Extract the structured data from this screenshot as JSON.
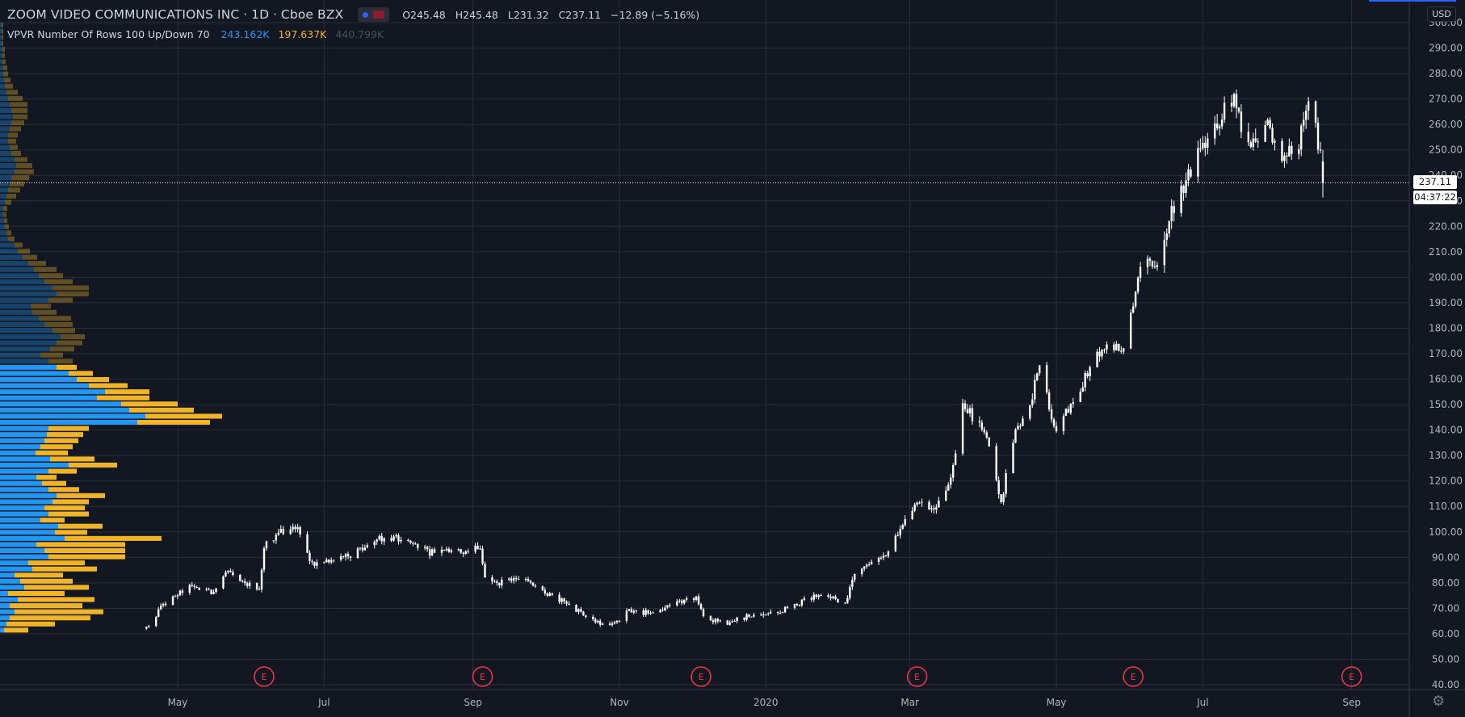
{
  "header": {
    "symbol": "ZOOM VIDEO COMMUNICATIONS INC",
    "interval": "1D",
    "exchange": "Cboe BZX",
    "open": "O245.48",
    "high": "H245.48",
    "low": "L231.32",
    "close": "C237.11",
    "change": "−12.89 (−5.16%)"
  },
  "indicator": {
    "label": "VPVR Number Of Rows 100 Up/Down 70",
    "up_volume": "243.162K",
    "down_volume": "197.637K",
    "total_volume": "440.799K"
  },
  "scale": {
    "currency": "USD",
    "last_price_tag": "237.11",
    "countdown_tag": "04:37:22"
  },
  "colors": {
    "background": "#131722",
    "grid": "#2a2e39",
    "candle": "#ffffff",
    "vp_up": "#2196f3",
    "vp_down": "#f0b429",
    "earnings": "#f23645"
  },
  "icons": {
    "earnings_marker": "E",
    "settings": "gear-icon"
  },
  "chart_data": {
    "type": "candlestick",
    "title": "ZOOM VIDEO COMMUNICATIONS INC · 1D · Cboe BZX",
    "ylim": [
      40,
      300
    ],
    "yticks": [
      "40.00",
      "50.00",
      "60.00",
      "70.00",
      "80.00",
      "90.00",
      "100.00",
      "110.00",
      "120.00",
      "130.00",
      "140.00",
      "150.00",
      "160.00",
      "170.00",
      "180.00",
      "190.00",
      "200.00",
      "210.00",
      "220.00",
      "230.00",
      "240.00",
      "250.00",
      "260.00",
      "270.00",
      "280.00",
      "290.00",
      "300.00"
    ],
    "xticks": [
      "May",
      "Jul",
      "Sep",
      "Nov",
      "2020",
      "Mar",
      "May",
      "Jul",
      "Sep"
    ],
    "xlim": [
      "2019-02-16",
      "2020-09-25"
    ],
    "xtick_dates": [
      "2019-05-01",
      "2019-07-01",
      "2019-09-01",
      "2019-11-01",
      "2020-01-01",
      "2020-03-01",
      "2020-05-01",
      "2020-07-01",
      "2020-09-01"
    ],
    "earnings_dates": [
      "2019-06-06",
      "2019-09-05",
      "2019-12-05",
      "2020-03-04",
      "2020-06-02",
      "2020-09-01"
    ],
    "price_path": [
      [
        "2019-04-18",
        62
      ],
      [
        "2019-04-24",
        70
      ],
      [
        "2019-05-01",
        76
      ],
      [
        "2019-05-08",
        79
      ],
      [
        "2019-05-15",
        76
      ],
      [
        "2019-05-22",
        86
      ],
      [
        "2019-05-29",
        80
      ],
      [
        "2019-06-04",
        78
      ],
      [
        "2019-06-06",
        94
      ],
      [
        "2019-06-12",
        100
      ],
      [
        "2019-06-20",
        103
      ],
      [
        "2019-06-25",
        88
      ],
      [
        "2019-07-03",
        88
      ],
      [
        "2019-07-10",
        90
      ],
      [
        "2019-07-17",
        94
      ],
      [
        "2019-07-24",
        97
      ],
      [
        "2019-07-31",
        98
      ],
      [
        "2019-08-07",
        95
      ],
      [
        "2019-08-14",
        92
      ],
      [
        "2019-08-21",
        93
      ],
      [
        "2019-08-28",
        92
      ],
      [
        "2019-09-04",
        94
      ],
      [
        "2019-09-06",
        82
      ],
      [
        "2019-09-12",
        80
      ],
      [
        "2019-09-20",
        82
      ],
      [
        "2019-10-01",
        76
      ],
      [
        "2019-10-10",
        72
      ],
      [
        "2019-10-20",
        66
      ],
      [
        "2019-10-28",
        63
      ],
      [
        "2019-11-05",
        69
      ],
      [
        "2019-11-15",
        68
      ],
      [
        "2019-11-25",
        72
      ],
      [
        "2019-12-03",
        74
      ],
      [
        "2019-12-06",
        66
      ],
      [
        "2019-12-15",
        64
      ],
      [
        "2019-12-25",
        67
      ],
      [
        "2020-01-05",
        68
      ],
      [
        "2020-01-15",
        72
      ],
      [
        "2020-01-25",
        76
      ],
      [
        "2020-02-03",
        72
      ],
      [
        "2020-02-08",
        86
      ],
      [
        "2020-02-20",
        90
      ],
      [
        "2020-02-28",
        105
      ],
      [
        "2020-03-04",
        112
      ],
      [
        "2020-03-10",
        108
      ],
      [
        "2020-03-18",
        120
      ],
      [
        "2020-03-23",
        150
      ],
      [
        "2020-04-01",
        140
      ],
      [
        "2020-04-08",
        112
      ],
      [
        "2020-04-14",
        140
      ],
      [
        "2020-04-20",
        150
      ],
      [
        "2020-04-24",
        165
      ],
      [
        "2020-04-30",
        140
      ],
      [
        "2020-05-08",
        150
      ],
      [
        "2020-05-15",
        165
      ],
      [
        "2020-05-22",
        173
      ],
      [
        "2020-05-29",
        170
      ],
      [
        "2020-06-02",
        190
      ],
      [
        "2020-06-06",
        210
      ],
      [
        "2020-06-12",
        205
      ],
      [
        "2020-06-18",
        225
      ],
      [
        "2020-06-25",
        240
      ],
      [
        "2020-07-01",
        252
      ],
      [
        "2020-07-08",
        262
      ],
      [
        "2020-07-14",
        272
      ],
      [
        "2020-07-20",
        250
      ],
      [
        "2020-07-27",
        260
      ],
      [
        "2020-08-03",
        248
      ],
      [
        "2020-08-10",
        252
      ],
      [
        "2020-08-14",
        270
      ],
      [
        "2020-08-19",
        250
      ],
      [
        "2020-08-20",
        237
      ]
    ],
    "volume_profile": {
      "price_range": [
        60,
        300
      ],
      "rows": 100,
      "up": [
        5,
        8,
        12,
        18,
        12,
        22,
        10,
        30,
        25,
        18,
        40,
        35,
        60,
        55,
        45,
        80,
        68,
        72,
        50,
        60,
        55,
        65,
        70,
        60,
        52,
        45,
        60,
        85,
        62,
        44,
        50,
        55,
        58,
        60,
        170,
        180,
        160,
        150,
        120,
        130,
        110,
        95,
        85,
        70,
        60,
        50,
        62,
        70,
        75,
        65,
        55,
        48,
        40,
        38,
        60,
        70,
        65,
        55,
        48,
        42,
        35,
        28,
        22,
        18,
        10,
        8,
        6,
        5,
        4,
        4,
        6,
        8,
        10,
        12,
        14,
        18,
        20,
        18,
        14,
        12,
        10,
        10,
        12,
        14,
        16,
        14,
        12,
        10,
        8,
        6,
        5,
        4,
        4,
        3,
        3,
        3,
        2,
        2,
        2,
        2
      ],
      "down": [
        30,
        60,
        100,
        110,
        90,
        95,
        70,
        80,
        65,
        60,
        80,
        70,
        95,
        100,
        110,
        120,
        40,
        55,
        30,
        50,
        50,
        45,
        60,
        38,
        30,
        25,
        35,
        60,
        55,
        40,
        40,
        42,
        45,
        50,
        90,
        95,
        80,
        70,
        65,
        55,
        48,
        40,
        30,
        25,
        30,
        28,
        30,
        32,
        30,
        28,
        35,
        40,
        30,
        25,
        30,
        40,
        45,
        35,
        30,
        28,
        22,
        18,
        15,
        10,
        8,
        6,
        5,
        4,
        4,
        5,
        8,
        12,
        15,
        18,
        22,
        24,
        20,
        16,
        12,
        10,
        10,
        12,
        14,
        16,
        18,
        20,
        22,
        18,
        14,
        10,
        8,
        6,
        5,
        4,
        3,
        3,
        2,
        2,
        2,
        2
      ]
    }
  }
}
